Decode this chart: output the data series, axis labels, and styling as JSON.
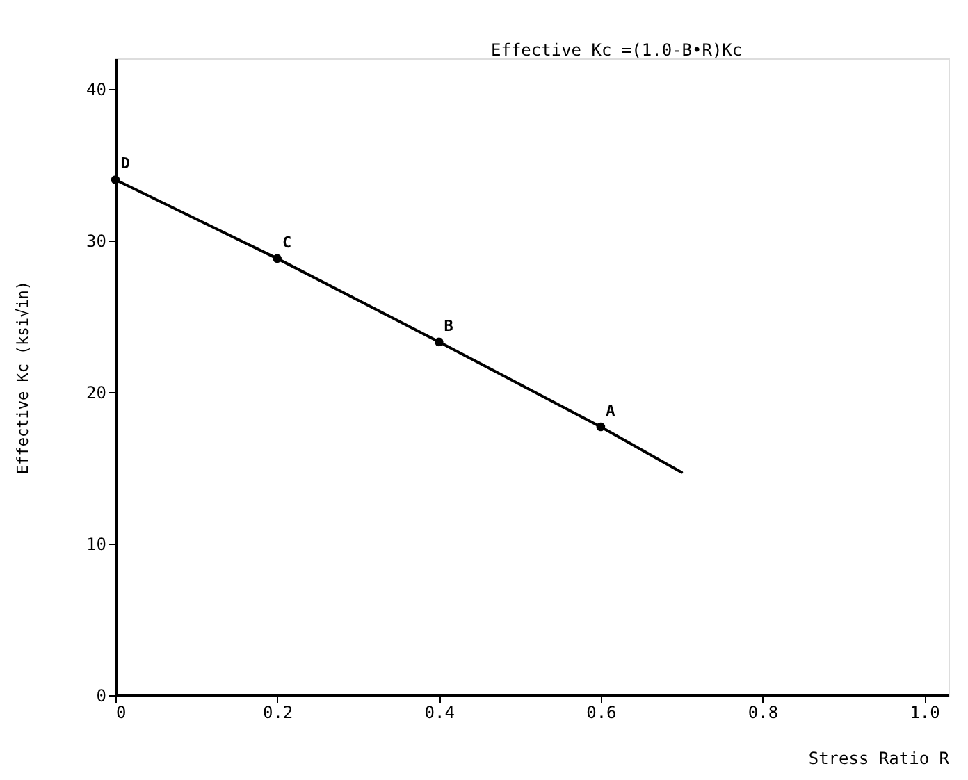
{
  "chart_data": {
    "type": "line",
    "xlabel": "Stress Ratio R",
    "ylabel": "Effective Kc  (ksi√in)",
    "xlim": [
      0,
      1.03
    ],
    "ylim": [
      0,
      42
    ],
    "xticks": [
      0,
      0.2,
      0.4,
      0.6,
      0.8,
      {
        "value": 1,
        "label": "1.0"
      }
    ],
    "yticks": [
      0,
      10,
      20,
      30,
      40
    ],
    "grid": false,
    "series": [
      {
        "color": "#000000",
        "marker": "none",
        "line_style": "solid",
        "x": [
          0,
          0.2,
          0.4,
          0.6,
          0.7
        ],
        "values": [
          34,
          28.8,
          23.3,
          17.7,
          14.7
        ]
      },
      {
        "type": "scatter",
        "color": "#000000",
        "marker": "circle",
        "x": [
          0,
          0.2,
          0.4,
          0.6
        ],
        "values": [
          34,
          28.8,
          23.3,
          17.7
        ]
      }
    ],
    "annotations": [
      "Effective Kc =(1.0-B•R)Kc",
      {
        "text": "D",
        "x": 0,
        "y": 34
      },
      {
        "text": "C",
        "x": 0.2,
        "y": 28.8
      },
      {
        "text": "B",
        "x": 0.4,
        "y": 23.3
      },
      {
        "text": "A",
        "x": 0.6,
        "y": 17.7
      }
    ]
  }
}
